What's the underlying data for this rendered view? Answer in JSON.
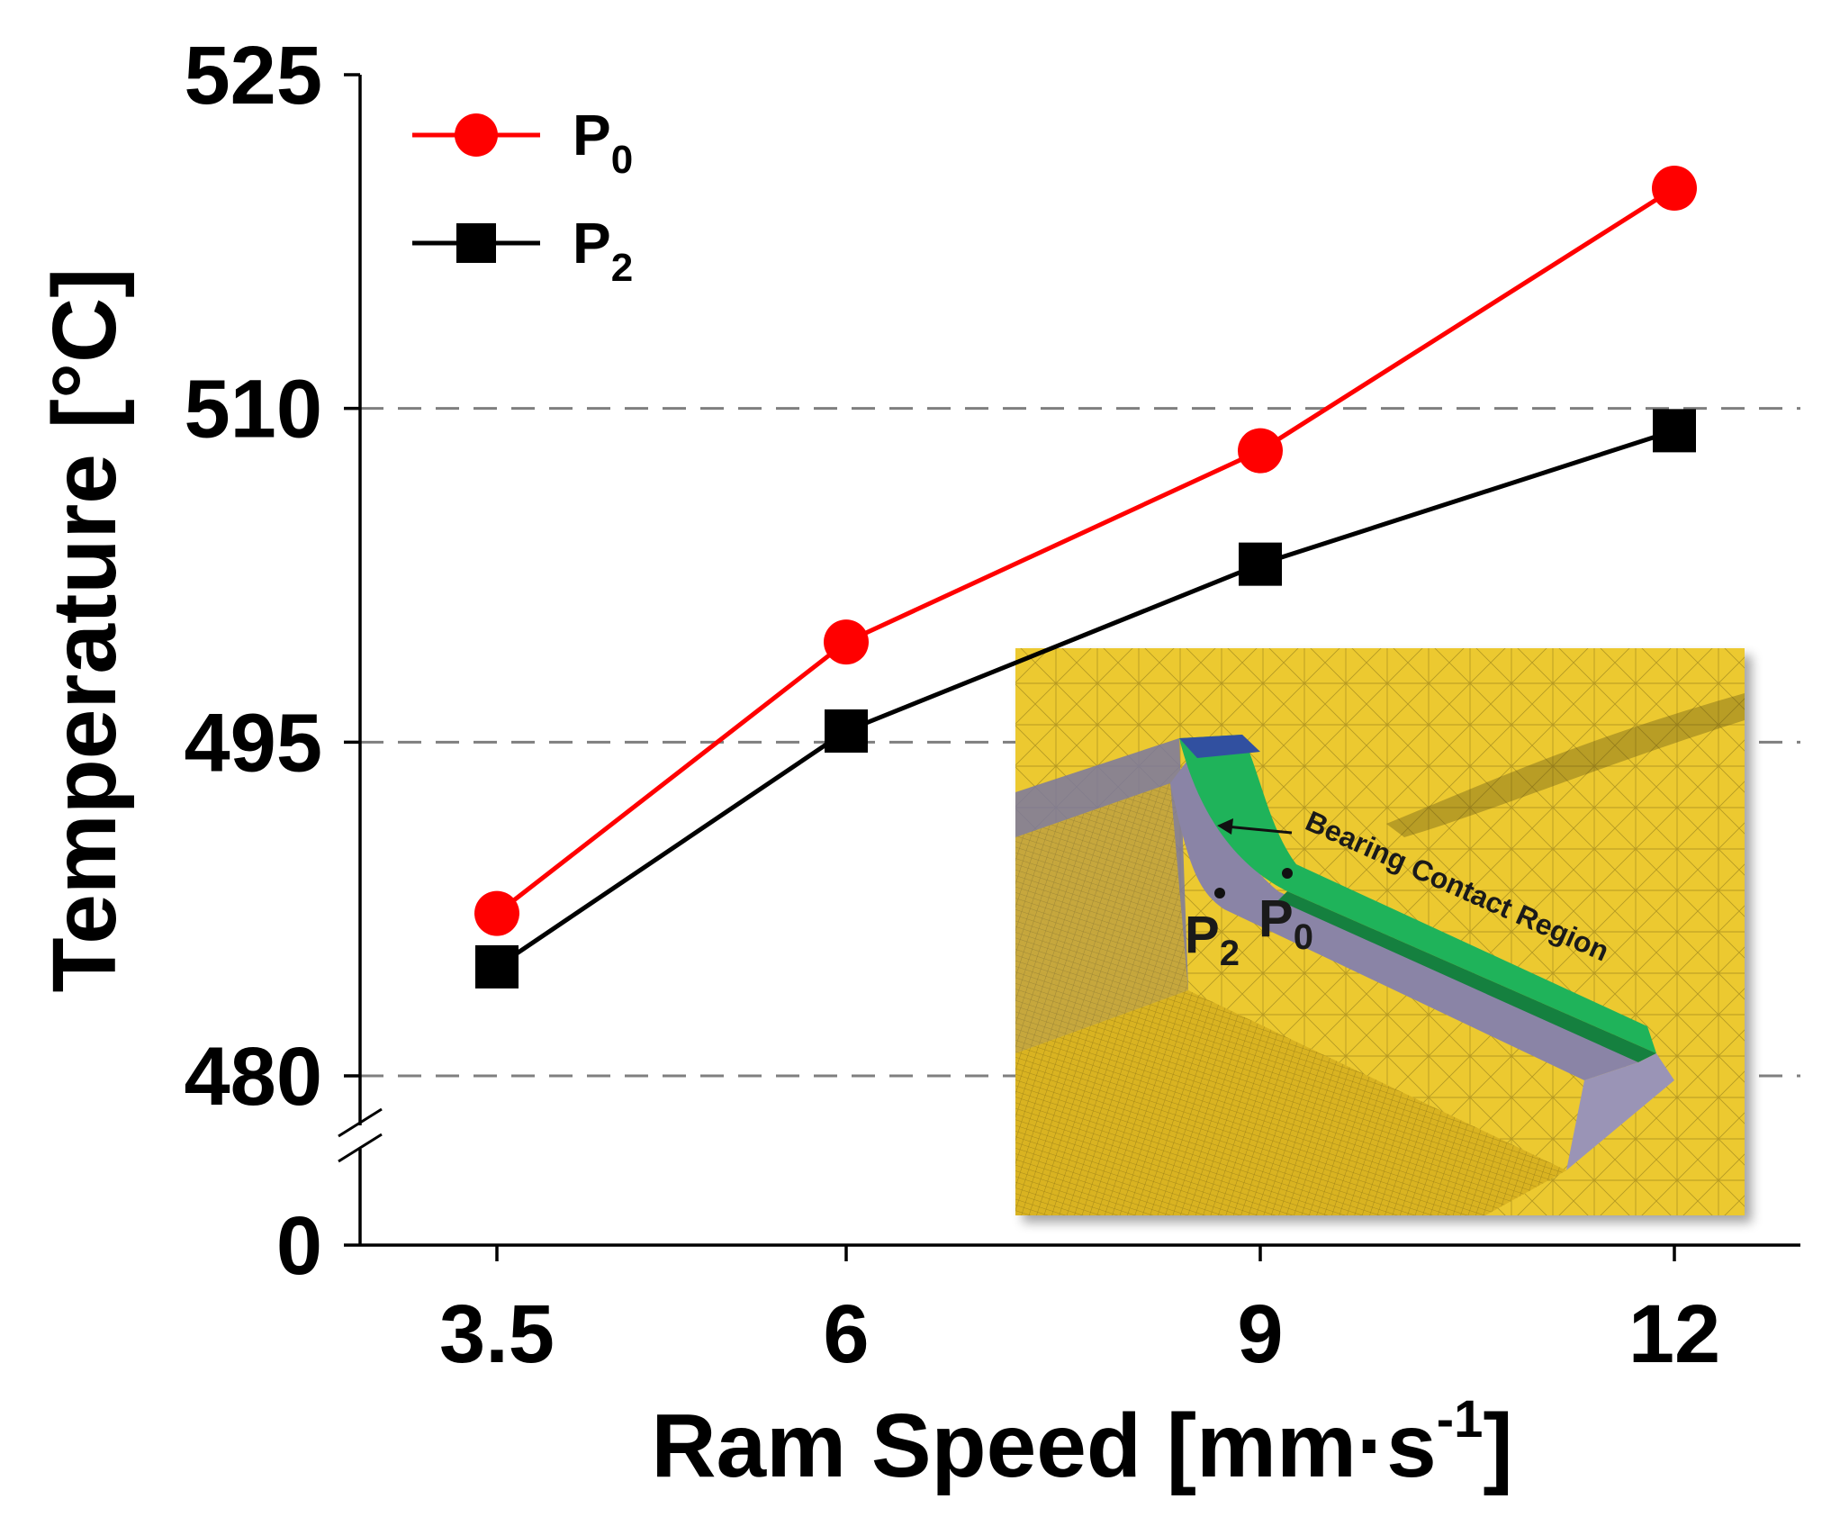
{
  "chart_data": {
    "type": "line",
    "title": "",
    "xlabel": "Ram Speed [mm·s-1]",
    "xlabel_parts": {
      "main": "Ram Speed [mm·s",
      "sup": "-1",
      "close": "]"
    },
    "ylabel": "Temperature [°C]",
    "categories": [
      "3.5",
      "6",
      "9",
      "12"
    ],
    "x": [
      3.5,
      6,
      9,
      12
    ],
    "y_ticks": [
      "525",
      "510",
      "495",
      "480",
      "0"
    ],
    "y_axis_break": "between 0 and 480",
    "ylim": [
      480,
      525
    ],
    "grid": "dashed horizontal lines at 480, 495, 510",
    "legend_position": "top-left",
    "series": [
      {
        "name": "P0",
        "label_main": "P",
        "label_sub": "0",
        "marker": "circle",
        "color": "#ff0000",
        "values": [
          487.3,
          499.5,
          508.1,
          519.9
        ]
      },
      {
        "name": "P2",
        "label_main": "P",
        "label_sub": "2",
        "marker": "square",
        "color": "#000000",
        "values": [
          484.9,
          495.5,
          503.0,
          509.0
        ]
      }
    ]
  },
  "inset": {
    "annotation": "Bearing Contact Region",
    "point_p2": {
      "main": "P",
      "sub": "2"
    },
    "point_p0": {
      "main": "P",
      "sub": "0"
    }
  },
  "colors": {
    "p0_line": "#ff0000",
    "p2_line": "#000000",
    "grid": "#7f7f7f",
    "mesh_yellow": "#e8c020",
    "bearing_green": "#22b05a",
    "surface_violet": "#8c82a8"
  }
}
